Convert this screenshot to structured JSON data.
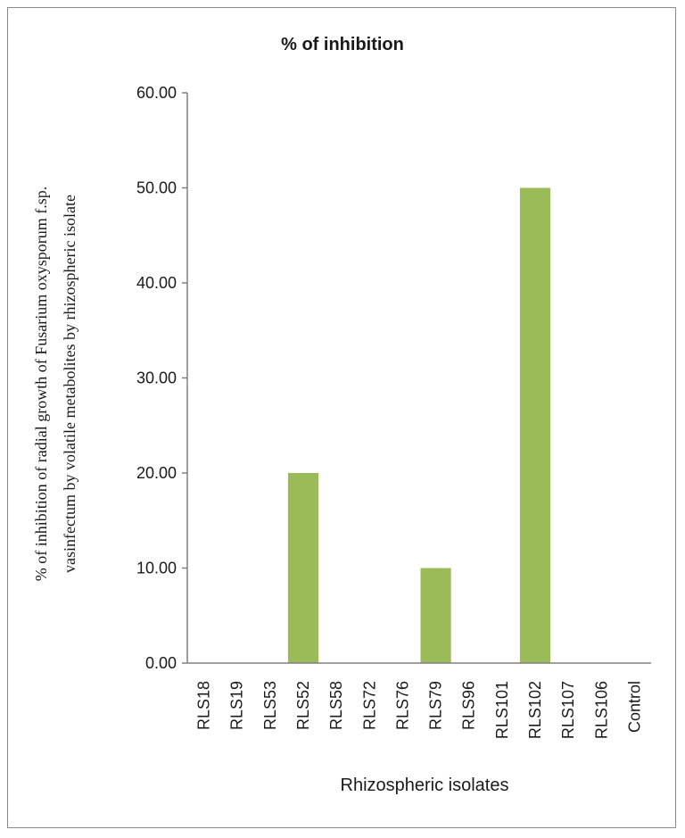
{
  "chart_data": {
    "type": "bar",
    "title": "% of inhibition",
    "xlabel": "Rhizospheric isolates",
    "ylabel_line1": "% of inhibition of radial growth of Fusarium oxysporum f.sp.",
    "ylabel_line2": "vasinfectum by volatile metabolites by rhizospheric isolate",
    "categories": [
      "RLS18",
      "RLS19",
      "RLS53",
      "RLS52",
      "RLS58",
      "RLS72",
      "RLS76",
      "RLS79",
      "RLS96",
      "RLS101",
      "RLS102",
      "RLS107",
      "RLS106",
      "Control"
    ],
    "values": [
      0,
      0,
      0,
      20,
      0,
      0,
      0,
      10,
      0,
      0,
      50,
      0,
      0,
      0
    ],
    "ylim": [
      0,
      60
    ],
    "yticks": [
      "0.00",
      "10.00",
      "20.00",
      "30.00",
      "40.00",
      "50.00",
      "60.00"
    ],
    "bar_color": "#9bbb59",
    "grid": false,
    "legend": "none"
  }
}
